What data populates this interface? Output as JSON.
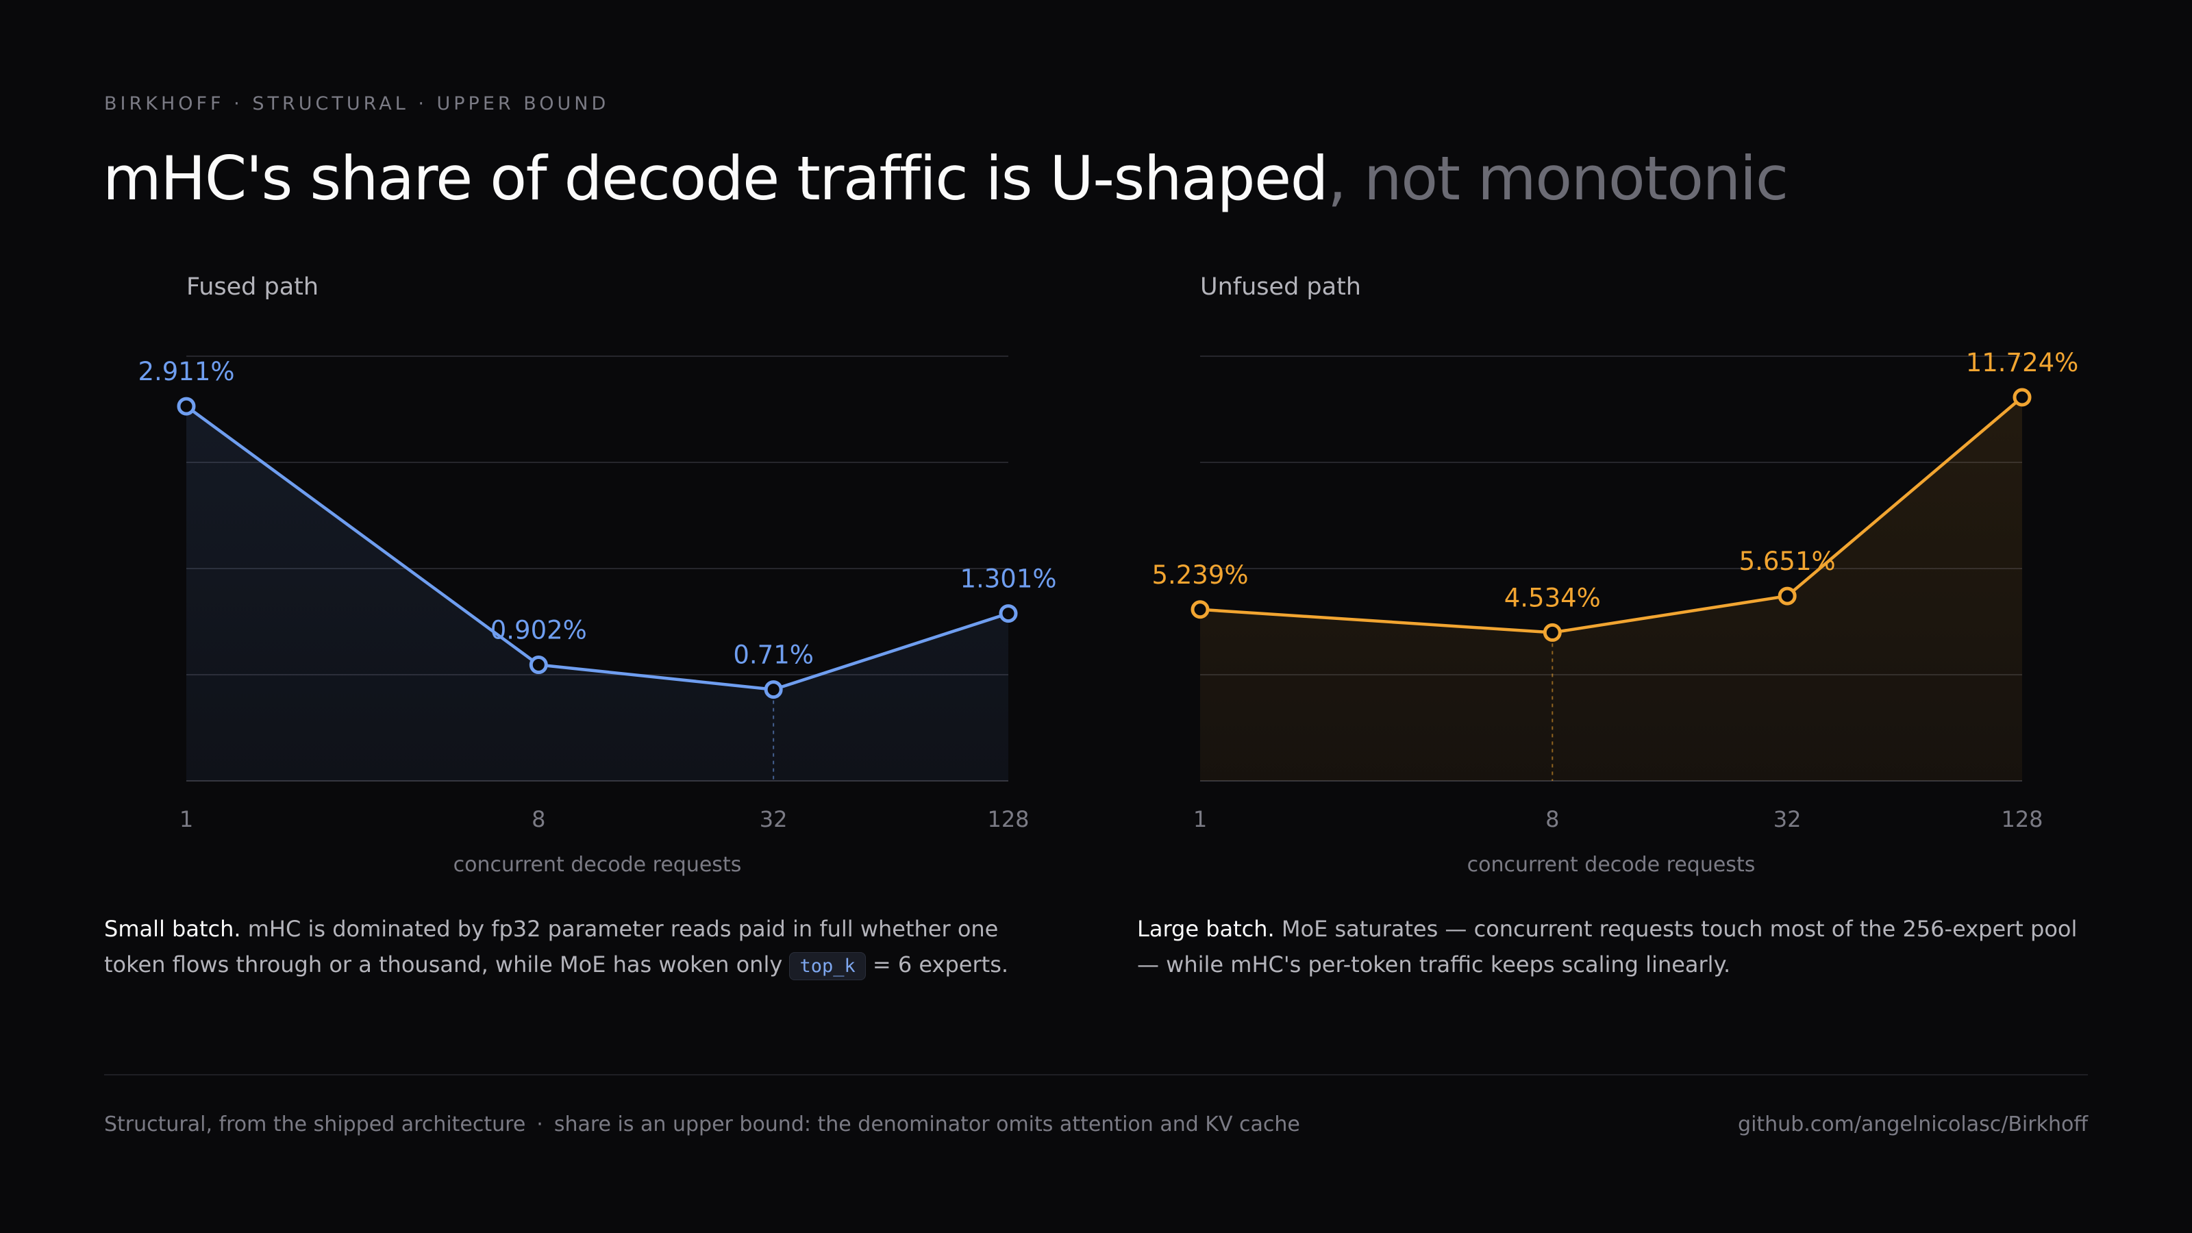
{
  "eyebrow": "BIRKHOFF · STRUCTURAL · UPPER BOUND",
  "headline": {
    "main": "mHC's share of decode traffic is U-shaped",
    "muted": ", not monotonic"
  },
  "chart_data": [
    {
      "type": "line",
      "title": "Fused path",
      "xlabel": "concurrent decode requests",
      "ylabel": "",
      "x_scale": "log",
      "categories": [
        "1",
        "8",
        "32",
        "128"
      ],
      "x": [
        1,
        8,
        32,
        128
      ],
      "series": [
        {
          "values": [
            2.911,
            0.902,
            0.71,
            1.301
          ],
          "labels": [
            "2.911%",
            "0.902%",
            "0.71%",
            "1.301%"
          ]
        }
      ],
      "ylim": [
        0,
        3.3
      ],
      "grid": true,
      "highlight_x": 32,
      "color": "#6f9ef0",
      "area_fill": true
    },
    {
      "type": "line",
      "title": "Unfused path",
      "xlabel": "concurrent decode requests",
      "ylabel": "",
      "x_scale": "log",
      "categories": [
        "1",
        "8",
        "32",
        "128"
      ],
      "x": [
        1,
        8,
        32,
        128
      ],
      "series": [
        {
          "values": [
            5.239,
            4.534,
            5.651,
            11.724
          ],
          "labels": [
            "5.239%",
            "4.534%",
            "5.651%",
            "11.724%"
          ]
        }
      ],
      "ylim": [
        0,
        12.98
      ],
      "grid": true,
      "highlight_x": 8,
      "color": "#f2a531",
      "area_fill": true
    }
  ],
  "captions": {
    "left": {
      "lead": "Small batch.",
      "text_before": " mHC is dominated by fp32 parameter reads paid in full whether one token flows through or a thousand, while MoE has woken only ",
      "code": "top_k",
      "text_after": " = 6 experts."
    },
    "right": {
      "lead": "Large batch.",
      "text": " MoE saturates — concurrent requests touch most of the 256-expert pool — while mHC's per-token traffic keeps scaling linearly."
    }
  },
  "footer": {
    "left_a": "Structural, from the shipped architecture",
    "separator": "·",
    "left_b": "share is an upper bound: the denominator omits attention and KV cache",
    "right": "github.com/angelnicolasc/Birkhoff"
  },
  "colors": {
    "background": "#09090b",
    "fused": "#6f9ef0",
    "unfused": "#f2a531",
    "grid": "#26262c",
    "muted_text": "#7b7b85"
  }
}
